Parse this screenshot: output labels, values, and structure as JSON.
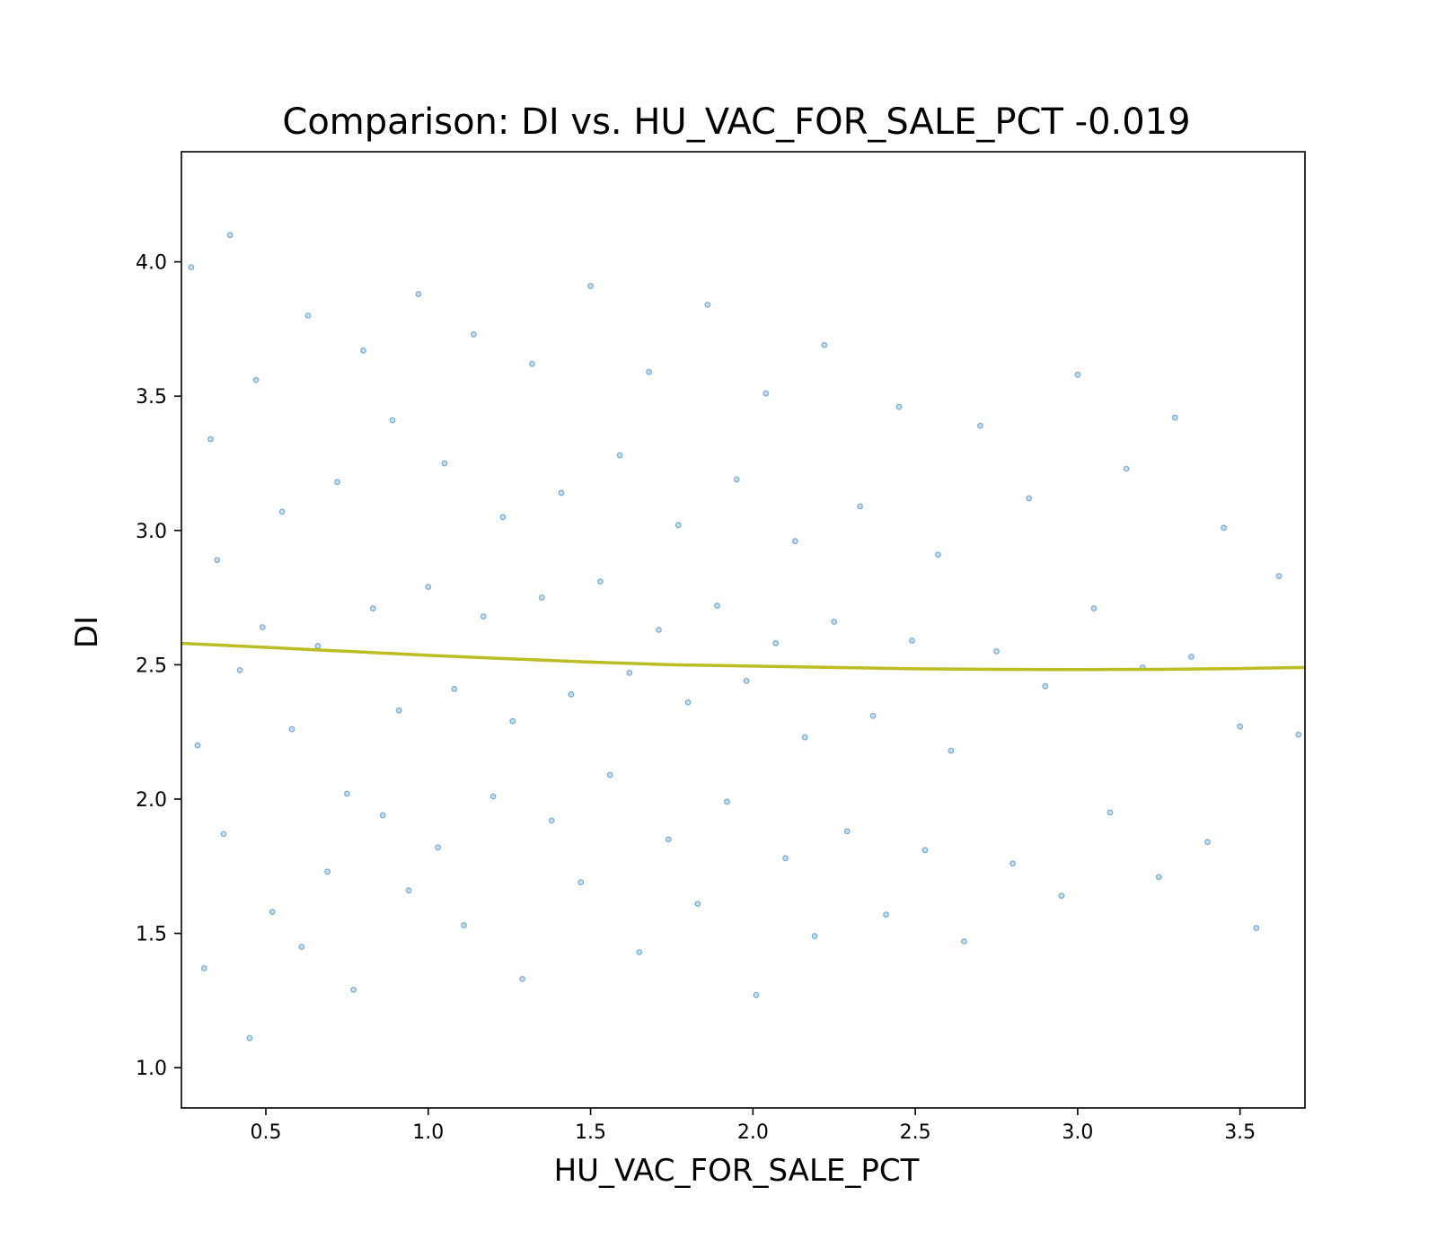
{
  "chart_data": {
    "type": "scatter",
    "title": "Comparison:  DI  vs.  HU_VAC_FOR_SALE_PCT  -0.019",
    "xlabel": "HU_VAC_FOR_SALE_PCT",
    "ylabel": "DI",
    "xlim": [
      0.24,
      3.7
    ],
    "ylim": [
      0.85,
      4.41
    ],
    "xticks": [
      0.5,
      1.0,
      1.5,
      2.0,
      2.5,
      3.0,
      3.5
    ],
    "yticks": [
      1.0,
      1.5,
      2.0,
      2.5,
      3.0,
      3.5,
      4.0
    ],
    "xtick_labels": [
      "0.5",
      "1.0",
      "1.5",
      "2.0",
      "2.5",
      "3.0",
      "3.5"
    ],
    "ytick_labels": [
      "1.0",
      "1.5",
      "2.0",
      "2.5",
      "3.0",
      "3.5",
      "4.0"
    ],
    "grid": false,
    "colors": {
      "points": "#1f77b4",
      "trend": "#bcbd22",
      "axes": "#000000"
    },
    "series": [
      {
        "kind": "points",
        "x": [
          0.27,
          0.29,
          0.31,
          0.33,
          0.35,
          0.37,
          0.39,
          0.42,
          0.45,
          0.47,
          0.49,
          0.52,
          0.55,
          0.58,
          0.61,
          0.63,
          0.66,
          0.69,
          0.72,
          0.75,
          0.77,
          0.8,
          0.83,
          0.86,
          0.89,
          0.91,
          0.94,
          0.97,
          1.0,
          1.03,
          1.05,
          1.08,
          1.11,
          1.14,
          1.17,
          1.2,
          1.23,
          1.26,
          1.29,
          1.32,
          1.35,
          1.38,
          1.41,
          1.44,
          1.47,
          1.5,
          1.53,
          1.56,
          1.59,
          1.62,
          1.65,
          1.68,
          1.71,
          1.74,
          1.77,
          1.8,
          1.83,
          1.86,
          1.89,
          1.92,
          1.95,
          1.98,
          2.01,
          2.04,
          2.07,
          2.1,
          2.13,
          2.16,
          2.19,
          2.22,
          2.25,
          2.29,
          2.33,
          2.37,
          2.41,
          2.45,
          2.49,
          2.53,
          2.57,
          2.61,
          2.65,
          2.7,
          2.75,
          2.8,
          2.85,
          2.9,
          2.95,
          3.0,
          3.05,
          3.1,
          3.15,
          3.2,
          3.25,
          3.3,
          3.35,
          3.4,
          3.45,
          3.5,
          3.55,
          3.62,
          3.68
        ],
        "y": [
          3.98,
          2.2,
          1.37,
          3.34,
          2.89,
          1.87,
          4.1,
          2.48,
          1.11,
          3.56,
          2.64,
          1.58,
          3.07,
          2.26,
          1.45,
          3.8,
          2.57,
          1.73,
          3.18,
          2.02,
          1.29,
          3.67,
          2.71,
          1.94,
          3.41,
          2.33,
          1.66,
          3.88,
          2.79,
          1.82,
          3.25,
          2.41,
          1.53,
          3.73,
          2.68,
          2.01,
          3.05,
          2.29,
          1.33,
          3.62,
          2.75,
          1.92,
          3.14,
          2.39,
          1.69,
          3.91,
          2.81,
          2.09,
          3.28,
          2.47,
          1.43,
          3.59,
          2.63,
          1.85,
          3.02,
          2.36,
          1.61,
          3.84,
          2.72,
          1.99,
          3.19,
          2.44,
          1.27,
          3.51,
          2.58,
          1.78,
          2.96,
          2.23,
          1.49,
          3.69,
          2.66,
          1.88,
          3.09,
          2.31,
          1.57,
          3.46,
          2.59,
          1.81,
          2.91,
          2.18,
          1.47,
          3.39,
          2.55,
          1.76,
          3.12,
          2.42,
          1.64,
          3.58,
          2.71,
          1.95,
          3.23,
          2.49,
          1.71,
          3.42,
          2.53,
          1.84,
          3.01,
          2.27,
          1.52,
          2.83,
          2.24
        ]
      },
      {
        "kind": "trend",
        "x": [
          0.24,
          0.5,
          0.75,
          1.0,
          1.25,
          1.5,
          1.75,
          2.0,
          2.25,
          2.5,
          2.75,
          3.0,
          3.25,
          3.5,
          3.7
        ],
        "y": [
          2.58,
          2.565,
          2.55,
          2.535,
          2.522,
          2.51,
          2.5,
          2.495,
          2.49,
          2.485,
          2.483,
          2.482,
          2.483,
          2.486,
          2.49
        ]
      }
    ]
  }
}
